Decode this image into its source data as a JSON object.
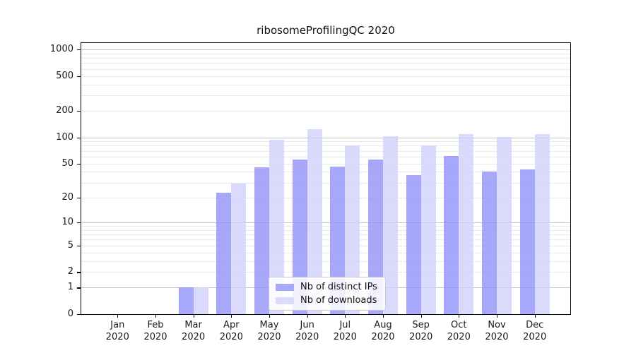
{
  "chart_data": {
    "type": "bar",
    "title": "ribosomeProfilingQC 2020",
    "categories": [
      "Jan",
      "Feb",
      "Mar",
      "Apr",
      "May",
      "Jun",
      "Jul",
      "Aug",
      "Sep",
      "Oct",
      "Nov",
      "Dec"
    ],
    "x_year": "2020",
    "series": [
      {
        "name": "Nb of distinct IPs",
        "legend_color": "#a9a9fa",
        "bar_color": "rgba(144,144,249,0.78)",
        "values": [
          0,
          0,
          1,
          23,
          45,
          56,
          46,
          56,
          37,
          61,
          40,
          43
        ]
      },
      {
        "name": "Nb of downloads",
        "legend_color": "#dbdbfa",
        "bar_color": "rgba(208,208,251,0.78)",
        "values": [
          0,
          0,
          1,
          29,
          93,
          124,
          80,
          102,
          80,
          108,
          101,
          109
        ]
      }
    ],
    "xlabel": "",
    "ylabel": "",
    "y_scale": "log1p",
    "ylim": [
      0,
      1220
    ],
    "y_ticks": [
      0,
      1,
      2,
      5,
      10,
      20,
      50,
      100,
      200,
      500,
      1000
    ],
    "y_tick_labels": [
      "0",
      "1",
      "2",
      "5",
      "10",
      "20",
      "50",
      "100",
      "200",
      "500",
      "1000"
    ],
    "grid": true,
    "grid_major_values": [
      1,
      10,
      100,
      1000
    ],
    "grid_minor_values": [
      2,
      3,
      4,
      5,
      6,
      7,
      8,
      9,
      20,
      30,
      40,
      50,
      60,
      70,
      80,
      90,
      200,
      300,
      400,
      500,
      600,
      700,
      800,
      900
    ],
    "legend_position": "bottom-center"
  },
  "colors": {
    "background": "#ffffff",
    "spine": "#000000",
    "grid_minor": "#eaeaea",
    "grid_major": "#c4c4c4",
    "text": "#111111",
    "legend_border": "#cbcbcb"
  }
}
